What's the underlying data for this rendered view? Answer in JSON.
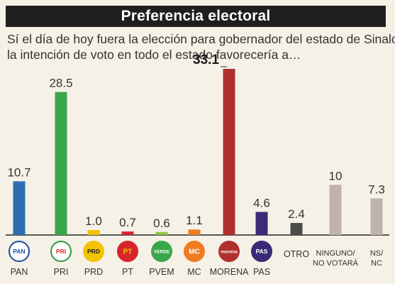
{
  "header": {
    "title": "Preferencia electoral",
    "subtitle_line1": "Sí el día de hoy fuera la elección para gobernador del estado de Sinaloa,",
    "subtitle_line2": "la intención de voto en todo el estado favorecería a…"
  },
  "chart_data": {
    "type": "bar",
    "title": "Preferencia electoral",
    "xlabel": "",
    "ylabel": "",
    "grid": false,
    "legend": "none",
    "ylim": [
      0,
      33.1
    ],
    "categories": [
      "PAN",
      "PRI",
      "PRD",
      "PT",
      "PVEM",
      "MC",
      "MORENA",
      "PAS",
      "OTRO",
      "NINGUNO/NO VOTARÁ",
      "NS/NC"
    ],
    "values": [
      10.7,
      28.5,
      1.0,
      0.7,
      0.6,
      1.1,
      33.1,
      4.6,
      2.4,
      10,
      7.3
    ],
    "value_labels": [
      "10.7",
      "28.5",
      "1.0",
      "0.7",
      "0.6",
      "1.1",
      "33.1",
      "4.6",
      "2.4",
      "10",
      "7.3"
    ],
    "category_label_lines": [
      [
        "PAN"
      ],
      [
        "PRI"
      ],
      [
        "PRD"
      ],
      [
        "PT"
      ],
      [
        "PVEM"
      ],
      [
        "MC"
      ],
      [
        "MORENA"
      ],
      [
        "PAS"
      ],
      [],
      [
        "NINGUNO/",
        "NO VOTARÁ"
      ],
      [
        "NS/",
        "NC"
      ]
    ],
    "inline_labels": [
      "",
      "",
      "",
      "",
      "",
      "",
      "",
      "",
      "OTRO",
      "",
      ""
    ],
    "colors": [
      "#2f6db1",
      "#3aa64a",
      "#f2c300",
      "#d7262a",
      "#8cc63f",
      "#f07c22",
      "#b0302d",
      "#3a2b78",
      "#4b4b4b",
      "#bfb3ab",
      "#bfb3ab"
    ],
    "highlight_index": 6,
    "logos": [
      {
        "icon": "pan-logo-icon",
        "text": "PAN",
        "bg": "#ffffff",
        "ring": "#1b4f9c",
        "fg": "#1b4f9c"
      },
      {
        "icon": "pri-logo-icon",
        "text": "PRI",
        "bg": "#ffffff",
        "ring": "#2f9a44",
        "fg": "#d7262a"
      },
      {
        "icon": "prd-logo-icon",
        "text": "PRD",
        "bg": "#f2c300",
        "ring": "#f2c300",
        "fg": "#1f1f1f"
      },
      {
        "icon": "pt-logo-icon",
        "text": "PT",
        "bg": "#d7262a",
        "ring": "#d7262a",
        "fg": "#f2c300"
      },
      {
        "icon": "pvem-logo-icon",
        "text": "VERDE",
        "bg": "#3aa64a",
        "ring": "#3aa64a",
        "fg": "#ffffff"
      },
      {
        "icon": "mc-logo-icon",
        "text": "MC",
        "bg": "#f07c22",
        "ring": "#f07c22",
        "fg": "#ffffff"
      },
      {
        "icon": "morena-logo-icon",
        "text": "morena",
        "bg": "#b0302d",
        "ring": "#b0302d",
        "fg": "#ffffff"
      },
      {
        "icon": "pas-logo-icon",
        "text": "PAS",
        "bg": "#3a2b78",
        "ring": "#3a2b78",
        "fg": "#ffffff"
      }
    ]
  }
}
